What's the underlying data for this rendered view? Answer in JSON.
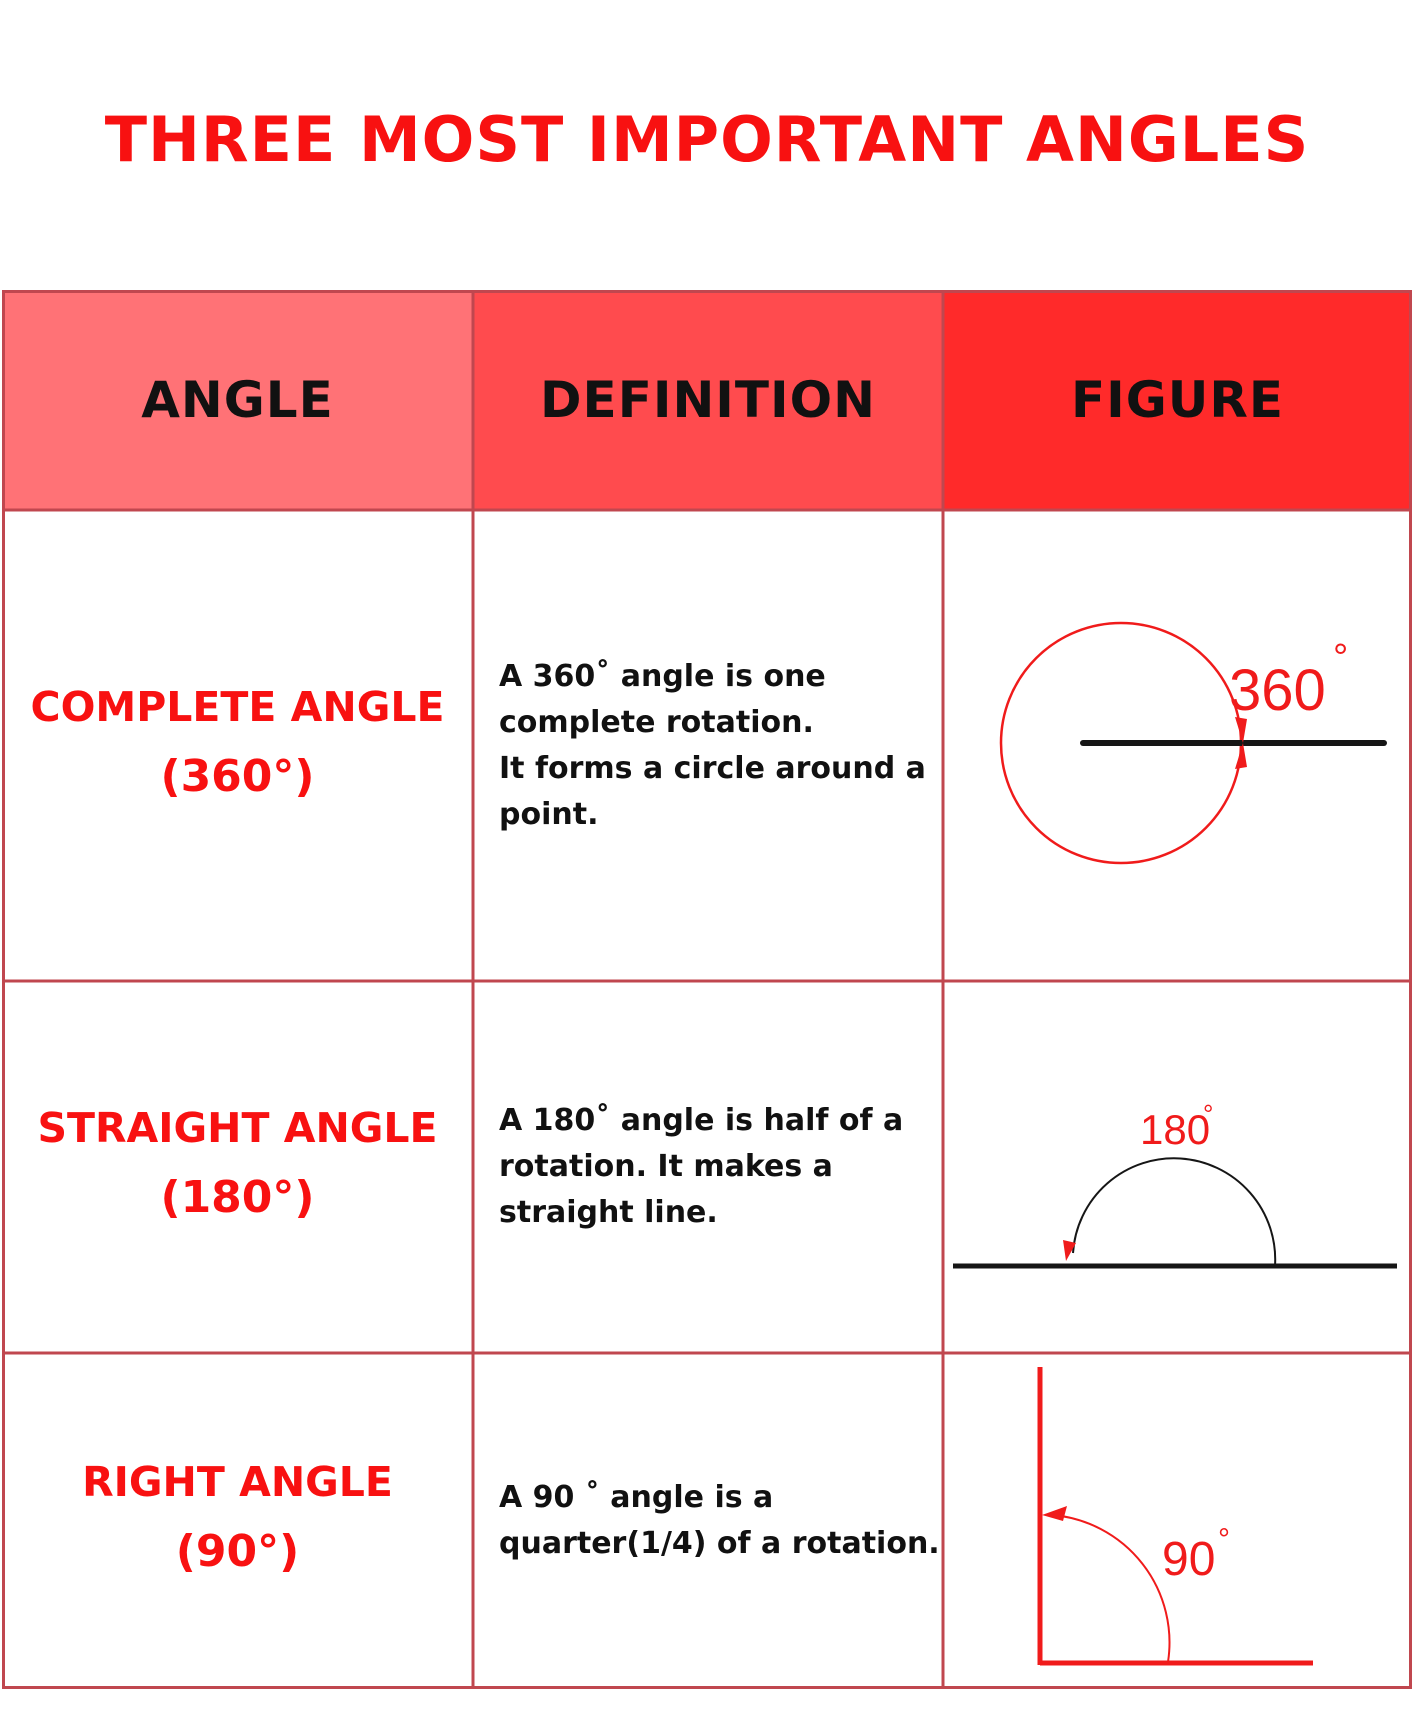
{
  "title": "THREE MOST IMPORTANT ANGLES",
  "headers": {
    "angle": "ANGLE",
    "definition": "DEFINITION",
    "figure": "FIGURE"
  },
  "colors": {
    "title": "#f81111",
    "header_angle_bg": "#ff7276",
    "header_definition_bg": "#ff4b4e",
    "header_figure_bg": "#ff2a2a",
    "grid_lines": "#c0474f",
    "figure_red": "#f01b1b",
    "figure_black": "#161616"
  },
  "rows": [
    {
      "name": "COMPLETE ANGLE",
      "degrees": "(360°)",
      "definition_lines": [
        " A 360˚ angle is one",
        "complete rotation.",
        "It forms a circle around a",
        "point."
      ],
      "figure_label": "360",
      "figure_degree_mark": "°",
      "figure_icon": "complete-angle-circle-icon"
    },
    {
      "name": "STRAIGHT ANGLE",
      "degrees": "(180°)",
      "definition_lines": [
        " A 180˚ angle is half of a",
        "rotation. It makes a",
        "straight line."
      ],
      "figure_label": "180",
      "figure_degree_mark": "°",
      "figure_icon": "straight-angle-arc-icon"
    },
    {
      "name": "RIGHT ANGLE",
      "degrees": "(90°)",
      "definition_lines": [
        "A 90 ˚ angle is a",
        "quarter(1/4) of a rotation."
      ],
      "figure_label": "90",
      "figure_degree_mark": "°",
      "figure_icon": "right-angle-arc-icon"
    }
  ]
}
